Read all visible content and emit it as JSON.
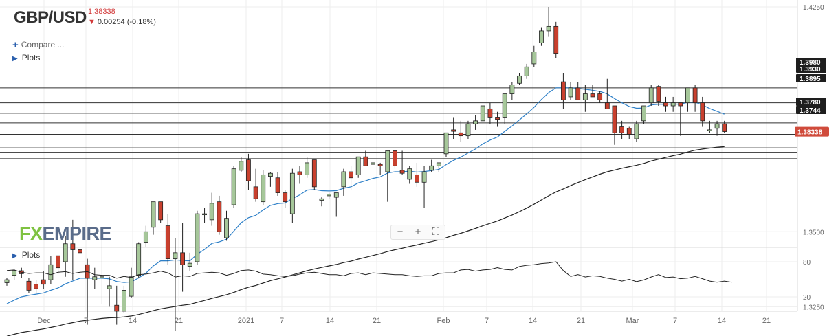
{
  "header": {
    "symbol": "GBP/USD",
    "price": "1.38338",
    "change": "0.00254 (-0.18%)",
    "compare_label": "Compare ...",
    "plots_label": "Plots",
    "indicator_plots_label": "Plots"
  },
  "logo": {
    "part1": "FX",
    "part2": "EMPIRE"
  },
  "zoom": {
    "minus": "−",
    "plus": "+",
    "fit": "⛶"
  },
  "colors": {
    "up_fill": "#a6c79a",
    "down_fill": "#c9402e",
    "candle_outline": "#222222",
    "ema_fast": "#2e80c8",
    "ema_slow": "#222222",
    "price_tag": "#d04b3b"
  },
  "chart_data": [
    {
      "type": "candlestick",
      "title": "GBP/USD",
      "price_axis_ticks": [
        1.425,
        1.35,
        1.325
      ],
      "price_axis_tick_labels": [
        "1.4250",
        "1.3500",
        "1.3250"
      ],
      "x_axis_labels": [
        "Dec",
        "7",
        "14",
        "21",
        "2021",
        "7",
        "14",
        "21",
        "Feb",
        "7",
        "14",
        "21",
        "Mar",
        "7",
        "14",
        "21"
      ],
      "horizontal_levels": [
        1.398,
        1.393,
        1.3895,
        1.3863,
        1.3825,
        1.378,
        1.3765,
        1.3744
      ],
      "labeled_levels": [
        "1.3980",
        "1.3930",
        "1.3895",
        "1.3780",
        "1.3744"
      ],
      "last_price_label": "1.38338",
      "candles": [
        [
          1.333,
          1.3345,
          1.332,
          1.334
        ],
        [
          1.3355,
          1.3375,
          1.334,
          1.337
        ],
        [
          1.337,
          1.338,
          1.3345,
          1.336
        ],
        [
          1.3335,
          1.3345,
          1.3295,
          1.3305
        ],
        [
          1.3325,
          1.334,
          1.3295,
          1.331
        ],
        [
          1.334,
          1.337,
          1.331,
          1.3325
        ],
        [
          1.334,
          1.342,
          1.3325,
          1.339
        ],
        [
          1.342,
          1.342,
          1.336,
          1.338
        ],
        [
          1.34,
          1.3485,
          1.335,
          1.346
        ],
        [
          1.346,
          1.354,
          1.334,
          1.344
        ],
        [
          1.344,
          1.343,
          1.338,
          1.343
        ],
        [
          1.339,
          1.341,
          1.319,
          1.3345
        ],
        [
          1.334,
          1.338,
          1.331,
          1.335
        ],
        [
          1.335,
          1.348,
          1.326,
          1.335
        ],
        [
          1.331,
          1.335,
          1.325,
          1.332
        ],
        [
          1.3255,
          1.332,
          1.319,
          1.3235
        ],
        [
          1.3235,
          1.332,
          1.323,
          1.3305
        ],
        [
          1.3285,
          1.338,
          1.328,
          1.335
        ],
        [
          1.3355,
          1.3465,
          1.3345,
          1.346
        ],
        [
          1.3465,
          1.352,
          1.345,
          1.35
        ],
        [
          1.3515,
          1.36,
          1.349,
          1.36
        ],
        [
          1.36,
          1.36,
          1.353,
          1.354
        ],
        [
          1.352,
          1.356,
          1.339,
          1.341
        ],
        [
          1.341,
          1.348,
          1.317,
          1.343
        ],
        [
          1.343,
          1.353,
          1.33,
          1.339
        ],
        [
          1.3385,
          1.343,
          1.337,
          1.3395
        ],
        [
          1.34,
          1.357,
          1.339,
          1.356
        ],
        [
          1.356,
          1.358,
          1.353,
          1.356
        ],
        [
          1.354,
          1.363,
          1.352,
          1.3595
        ],
        [
          1.36,
          1.362,
          1.349,
          1.35
        ],
        [
          1.348,
          1.357,
          1.347,
          1.3545
        ],
        [
          1.359,
          1.372,
          1.358,
          1.371
        ],
        [
          1.3705,
          1.375,
          1.37,
          1.3735
        ],
        [
          1.374,
          1.376,
          1.364,
          1.367
        ],
        [
          1.365,
          1.371,
          1.36,
          1.361
        ],
        [
          1.36,
          1.3705,
          1.359,
          1.369
        ],
        [
          1.3685,
          1.37,
          1.365,
          1.3695
        ],
        [
          1.368,
          1.37,
          1.362,
          1.363
        ],
        [
          1.363,
          1.364,
          1.358,
          1.36
        ],
        [
          1.356,
          1.371,
          1.353,
          1.3695
        ],
        [
          1.37,
          1.372,
          1.366,
          1.369
        ],
        [
          1.369,
          1.375,
          1.368,
          1.373
        ],
        [
          1.374,
          1.374,
          1.364,
          1.365
        ],
        [
          1.3605,
          1.3615,
          1.3585,
          1.361
        ],
        [
          1.362,
          1.363,
          1.361,
          1.3625
        ],
        [
          1.3615,
          1.363,
          1.355,
          1.363
        ],
        [
          1.365,
          1.371,
          1.362,
          1.37
        ],
        [
          1.37,
          1.372,
          1.364,
          1.368
        ],
        [
          1.369,
          1.375,
          1.368,
          1.375
        ],
        [
          1.375,
          1.377,
          1.372,
          1.372
        ],
        [
          1.3725,
          1.374,
          1.372,
          1.373
        ],
        [
          1.3725,
          1.373,
          1.369,
          1.372
        ],
        [
          1.37,
          1.376,
          1.36,
          1.377
        ],
        [
          1.377,
          1.377,
          1.371,
          1.372
        ],
        [
          1.3705,
          1.377,
          1.369,
          1.3695
        ],
        [
          1.3675,
          1.372,
          1.366,
          1.371
        ],
        [
          1.369,
          1.373,
          1.365,
          1.3665
        ],
        [
          1.3665,
          1.372,
          1.358,
          1.37
        ],
        [
          1.3705,
          1.374,
          1.37,
          1.372
        ],
        [
          1.372,
          1.373,
          1.37,
          1.373
        ],
        [
          1.376,
          1.383,
          1.375,
          1.383
        ],
        [
          1.384,
          1.388,
          1.381,
          1.3835
        ],
        [
          1.383,
          1.387,
          1.38,
          1.382
        ],
        [
          1.382,
          1.387,
          1.381,
          1.386
        ],
        [
          1.386,
          1.389,
          1.384,
          1.387
        ],
        [
          1.387,
          1.392,
          1.387,
          1.392
        ],
        [
          1.391,
          1.393,
          1.386,
          1.388
        ],
        [
          1.388,
          1.39,
          1.385,
          1.3875
        ],
        [
          1.388,
          1.396,
          1.386,
          1.396
        ],
        [
          1.396,
          1.4,
          1.394,
          1.399
        ],
        [
          1.3995,
          1.403,
          1.399,
          1.402
        ],
        [
          1.402,
          1.406,
          1.401,
          1.405
        ],
        [
          1.406,
          1.412,
          1.405,
          1.41
        ],
        [
          1.413,
          1.418,
          1.412,
          1.417
        ],
        [
          1.417,
          1.425,
          1.415,
          1.4185
        ],
        [
          1.4185,
          1.42,
          1.408,
          1.4095
        ],
        [
          1.4,
          1.403,
          1.391,
          1.394
        ],
        [
          1.395,
          1.4,
          1.394,
          1.398
        ],
        [
          1.398,
          1.4,
          1.394,
          1.394
        ],
        [
          1.394,
          1.399,
          1.39,
          1.396
        ],
        [
          1.396,
          1.399,
          1.395,
          1.395
        ],
        [
          1.396,
          1.397,
          1.393,
          1.394
        ],
        [
          1.393,
          1.401,
          1.391,
          1.391
        ],
        [
          1.392,
          1.392,
          1.379,
          1.383
        ],
        [
          1.385,
          1.387,
          1.381,
          1.383
        ],
        [
          1.3845,
          1.385,
          1.381,
          1.3825
        ],
        [
          1.381,
          1.387,
          1.38,
          1.386
        ],
        [
          1.387,
          1.392,
          1.386,
          1.392
        ],
        [
          1.393,
          1.399,
          1.392,
          1.398
        ],
        [
          1.3985,
          1.399,
          1.392,
          1.3935
        ],
        [
          1.393,
          1.395,
          1.39,
          1.392
        ],
        [
          1.392,
          1.395,
          1.39,
          1.393
        ],
        [
          1.393,
          1.393,
          1.382,
          1.392
        ],
        [
          1.393,
          1.398,
          1.39,
          1.398
        ],
        [
          1.398,
          1.399,
          1.39,
          1.393
        ],
        [
          1.393,
          1.395,
          1.385,
          1.387
        ],
        [
          1.384,
          1.387,
          1.383,
          1.384
        ],
        [
          1.3845,
          1.387,
          1.382,
          1.386
        ],
        [
          1.386,
          1.387,
          1.383,
          1.3834
        ]
      ],
      "ema_fast": [
        1.326,
        1.3272,
        1.3283,
        1.3288,
        1.3292,
        1.3296,
        1.3305,
        1.3313,
        1.3326,
        1.3336,
        1.3345,
        1.3345,
        1.3345,
        1.3345,
        1.3343,
        1.3334,
        1.3331,
        1.3333,
        1.3346,
        1.3362,
        1.3386,
        1.3403,
        1.3403,
        1.3406,
        1.3404,
        1.3403,
        1.3425,
        1.3441,
        1.3461,
        1.3466,
        1.3475,
        1.3502,
        1.353,
        1.3547,
        1.3555,
        1.3573,
        1.3588,
        1.3594,
        1.3596,
        1.3611,
        1.3623,
        1.3639,
        1.3641,
        1.3637,
        1.3636,
        1.3637,
        1.3645,
        1.365,
        1.3663,
        1.367,
        1.3678,
        1.3683,
        1.3696,
        1.37,
        1.37,
        1.3702,
        1.3699,
        1.3701,
        1.3704,
        1.3708,
        1.3724,
        1.3738,
        1.3749,
        1.3763,
        1.3776,
        1.3793,
        1.3806,
        1.3816,
        1.3835,
        1.3853,
        1.3873,
        1.3893,
        1.3915,
        1.3941,
        1.3964,
        1.398,
        1.398,
        1.398,
        1.3978,
        1.3975,
        1.3972,
        1.3968,
        1.396,
        1.3944,
        1.393,
        1.3918,
        1.3912,
        1.3913,
        1.3923,
        1.3925,
        1.3925,
        1.3926,
        1.3925,
        1.3932,
        1.3932,
        1.3923,
        1.3911,
        1.3902,
        1.3892
      ],
      "ema_slow": [
        1.3152,
        1.3158,
        1.3164,
        1.3168,
        1.3172,
        1.3176,
        1.3181,
        1.3186,
        1.3192,
        1.3197,
        1.3202,
        1.3205,
        1.3208,
        1.3211,
        1.3213,
        1.3214,
        1.3216,
        1.3219,
        1.3224,
        1.323,
        1.3237,
        1.3243,
        1.3247,
        1.3251,
        1.3255,
        1.3258,
        1.3265,
        1.3271,
        1.3278,
        1.3284,
        1.329,
        1.3298,
        1.3307,
        1.3315,
        1.3321,
        1.3329,
        1.3337,
        1.3343,
        1.3349,
        1.3356,
        1.3363,
        1.337,
        1.3376,
        1.3381,
        1.3386,
        1.3391,
        1.3397,
        1.3402,
        1.3409,
        1.3415,
        1.3421,
        1.3427,
        1.3434,
        1.344,
        1.3445,
        1.3451,
        1.3456,
        1.3462,
        1.3467,
        1.3473,
        1.348,
        1.3488,
        1.3495,
        1.3503,
        1.3511,
        1.352,
        1.3528,
        1.3536,
        1.3546,
        1.3556,
        1.3567,
        1.3579,
        1.3592,
        1.3606,
        1.362,
        1.3633,
        1.3643,
        1.3654,
        1.3664,
        1.3674,
        1.3683,
        1.3692,
        1.37,
        1.3706,
        1.3712,
        1.3717,
        1.3722,
        1.3728,
        1.3736,
        1.3742,
        1.3748,
        1.3754,
        1.3759,
        1.3766,
        1.3772,
        1.3776,
        1.3779,
        1.3782,
        1.3784
      ]
    },
    {
      "type": "line",
      "title": "",
      "y_axis_ticks": [
        80,
        20
      ],
      "ylim": [
        10,
        95
      ],
      "values": [
        65,
        66,
        62,
        60,
        61,
        61,
        58,
        62,
        63,
        60,
        62,
        63,
        58,
        57,
        57,
        52,
        55,
        53,
        58,
        59,
        61,
        64,
        61,
        54,
        56,
        55,
        60,
        61,
        62,
        61,
        57,
        60,
        65,
        66,
        64,
        59,
        58,
        56,
        55,
        56,
        59,
        61,
        62,
        60,
        58,
        58,
        56,
        60,
        61,
        58,
        61,
        60,
        59,
        58,
        58,
        56,
        55,
        56,
        56,
        60,
        61,
        61,
        66,
        67,
        64,
        66,
        67,
        70,
        67,
        66,
        72,
        74,
        75,
        77,
        78,
        80,
        65,
        55,
        58,
        54,
        56,
        55,
        52,
        50,
        47,
        50,
        46,
        49,
        54,
        58,
        53,
        54,
        51,
        52,
        55,
        51,
        47,
        45,
        47,
        45
      ]
    }
  ]
}
